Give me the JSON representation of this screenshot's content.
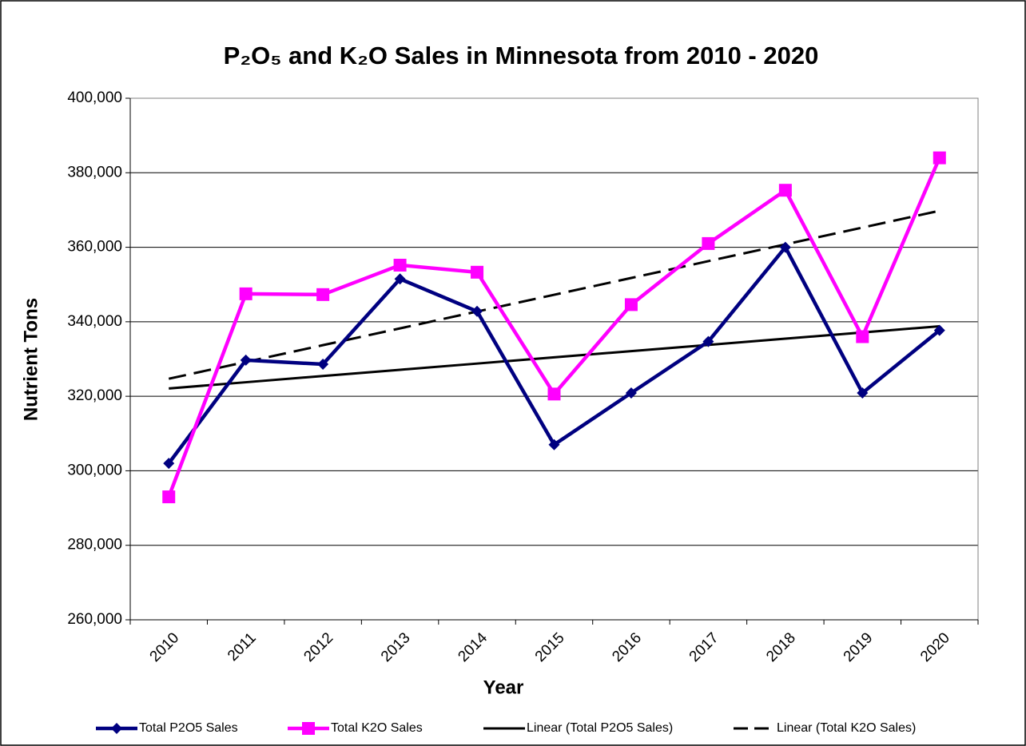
{
  "chart_data": {
    "type": "line",
    "title": "P₂O₅ and K₂O Sales in Minnesota from 2010 - 2020",
    "x_label": "Year",
    "y_label": "Nutrient Tons",
    "categories": [
      "2010",
      "2011",
      "2012",
      "2013",
      "2014",
      "2015",
      "2016",
      "2017",
      "2018",
      "2019",
      "2020"
    ],
    "series": [
      {
        "name": "Total P2O5 Sales",
        "color": "#000080",
        "marker": "diamond",
        "dash": false,
        "values": [
          302000,
          329700,
          328600,
          351500,
          342800,
          307000,
          320900,
          334700,
          360000,
          320900,
          337700
        ]
      },
      {
        "name": "Total K2O Sales",
        "color": "#ff00ff",
        "marker": "square",
        "dash": false,
        "values": [
          293000,
          347500,
          347300,
          355200,
          353300,
          320600,
          344600,
          361000,
          375300,
          336000,
          384000
        ]
      },
      {
        "name": "Linear (Total P2O5 Sales)",
        "color": "#000000",
        "marker": "none",
        "dash": false,
        "values": [
          322100,
          323770,
          325440,
          327110,
          328780,
          330450,
          332120,
          333790,
          335460,
          337130,
          338800
        ]
      },
      {
        "name": "Linear (Total K2O Sales)",
        "color": "#000000",
        "marker": "none",
        "dash": true,
        "values": [
          324700,
          329210,
          333720,
          338230,
          342740,
          347250,
          351760,
          356270,
          360780,
          365290,
          369800
        ]
      }
    ],
    "ylim": [
      260000,
      400000
    ],
    "yticks": [
      {
        "value": 260000,
        "label": "260,000"
      },
      {
        "value": 280000,
        "label": "280,000"
      },
      {
        "value": 300000,
        "label": "300,000"
      },
      {
        "value": 320000,
        "label": "320,000"
      },
      {
        "value": 340000,
        "label": "340,000"
      },
      {
        "value": 360000,
        "label": "360,000"
      },
      {
        "value": 380000,
        "label": "380,000"
      },
      {
        "value": 400000,
        "label": "400,000"
      }
    ],
    "grid": true,
    "legend": "bottom"
  }
}
